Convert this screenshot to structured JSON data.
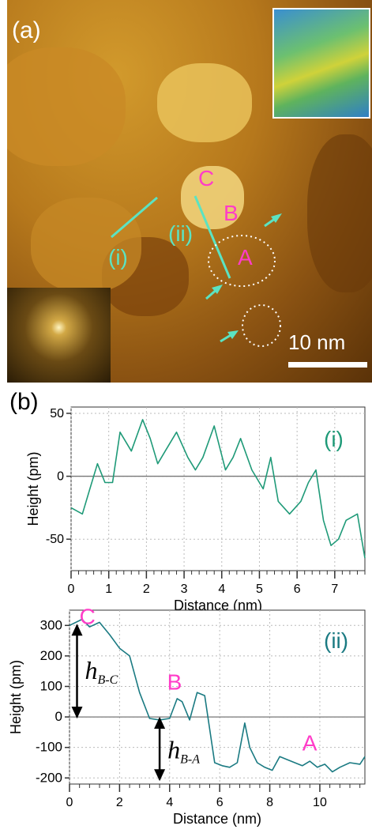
{
  "panel_a": {
    "label": "(a)",
    "point_labels": {
      "C": "C",
      "B": "B",
      "A": "A"
    },
    "line_labels": {
      "i": "(i)",
      "ii": "(ii)"
    },
    "scale_bar": "10 nm",
    "colors": {
      "magenta": "#ff3cc8",
      "cyan": "#5be3c2",
      "white": "#ffffff"
    }
  },
  "panel_b_label": "(b)",
  "chart_data": [
    {
      "type": "line",
      "tag": "(i)",
      "xlabel": "Distance (nm)",
      "ylabel": "Height (pm)",
      "xlim": [
        0,
        7.8
      ],
      "ylim": [
        -75,
        55
      ],
      "xticks": [
        0,
        1,
        2,
        3,
        4,
        5,
        6,
        7
      ],
      "yticks": [
        50,
        0,
        -50
      ],
      "zero_line": true,
      "line_color": "#1f9a78",
      "x": [
        0,
        0.3,
        0.5,
        0.7,
        0.9,
        1.1,
        1.3,
        1.6,
        1.9,
        2.1,
        2.3,
        2.5,
        2.8,
        3.1,
        3.3,
        3.5,
        3.8,
        4.1,
        4.3,
        4.5,
        4.8,
        5.1,
        5.3,
        5.5,
        5.8,
        6.1,
        6.3,
        6.5,
        6.7,
        6.9,
        7.1,
        7.3,
        7.6,
        7.8
      ],
      "y": [
        -25,
        -30,
        -10,
        10,
        -5,
        -5,
        35,
        20,
        45,
        30,
        10,
        20,
        35,
        15,
        5,
        15,
        40,
        5,
        15,
        30,
        5,
        -10,
        15,
        -20,
        -30,
        -20,
        -5,
        5,
        -35,
        -55,
        -50,
        -35,
        -30,
        -65
      ]
    },
    {
      "type": "line",
      "tag": "(ii)",
      "xlabel": "Distance (nm)",
      "ylabel": "Height (pm)",
      "xlim": [
        0,
        11.8
      ],
      "ylim": [
        -220,
        350
      ],
      "xticks": [
        0,
        2,
        4,
        6,
        8,
        10
      ],
      "yticks": [
        300,
        200,
        100,
        0,
        -100,
        -200
      ],
      "zero_line": true,
      "line_color": "#1a7a82",
      "annotations": {
        "C": "C",
        "B": "B",
        "A": "A",
        "hBC": "h",
        "hBC_sub": "B-C",
        "hBA": "h",
        "hBA_sub": "B-A"
      },
      "x": [
        0,
        0.5,
        0.8,
        1.2,
        1.6,
        2.0,
        2.4,
        2.8,
        3.2,
        3.6,
        4.0,
        4.3,
        4.5,
        4.8,
        5.1,
        5.4,
        5.8,
        6.1,
        6.4,
        6.7,
        7.0,
        7.2,
        7.5,
        7.8,
        8.1,
        8.4,
        8.7,
        9.0,
        9.3,
        9.6,
        9.9,
        10.2,
        10.5,
        10.8,
        11.2,
        11.6,
        11.8
      ],
      "y": [
        300,
        320,
        295,
        310,
        270,
        225,
        200,
        80,
        -5,
        -10,
        -5,
        60,
        50,
        -10,
        80,
        70,
        -150,
        -160,
        -165,
        -150,
        -20,
        -100,
        -150,
        -165,
        -175,
        -130,
        -140,
        -150,
        -160,
        -145,
        -165,
        -155,
        -180,
        -165,
        -150,
        -155,
        -130
      ]
    }
  ]
}
